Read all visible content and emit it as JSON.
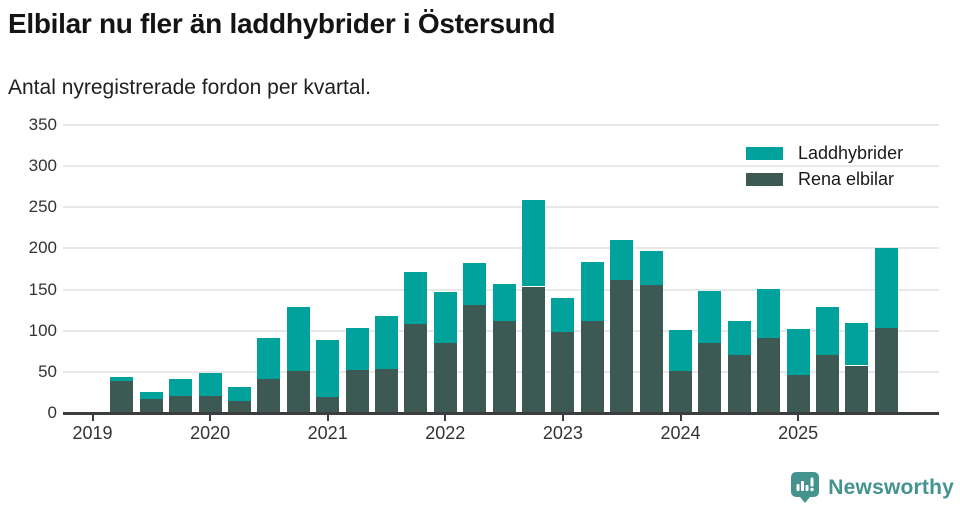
{
  "header": {
    "title": "Elbilar nu fler än laddhybrider i Östersund",
    "subtitle": "Antal nyregistrerade fordon per kvartal."
  },
  "colors": {
    "laddhybrider": "#00A29B",
    "rena_elbilar": "#3C5954",
    "gridline": "#E8E8E8",
    "axis": "#3D3D3D",
    "brand": "#44938E"
  },
  "legend": {
    "items": [
      {
        "label": "Laddhybrider",
        "color_key": "laddhybrider"
      },
      {
        "label": "Rena elbilar",
        "color_key": "rena_elbilar"
      }
    ]
  },
  "chart_data": {
    "type": "bar",
    "stacked": true,
    "title": "Elbilar nu fler än laddhybrider i Östersund",
    "subtitle": "Antal nyregistrerade fordon per kvartal.",
    "xlabel": "",
    "ylabel": "",
    "ylim": [
      0,
      350
    ],
    "yticks": [
      0,
      50,
      100,
      150,
      200,
      250,
      300,
      350
    ],
    "grid": true,
    "legend_position": "top-right",
    "x": [
      "2019 Q2",
      "2019 Q3",
      "2019 Q4",
      "2020 Q1",
      "2020 Q2",
      "2020 Q3",
      "2020 Q4",
      "2021 Q1",
      "2021 Q2",
      "2021 Q3",
      "2021 Q4",
      "2022 Q1",
      "2022 Q2",
      "2022 Q3",
      "2022 Q4",
      "2023 Q1",
      "2023 Q2",
      "2023 Q3",
      "2023 Q4",
      "2024 Q1",
      "2024 Q2",
      "2024 Q3",
      "2024 Q4",
      "2025 Q1",
      "2025 Q2",
      "2025 Q3",
      "2025 Q4"
    ],
    "year_ticks": [
      "2019",
      "2020",
      "2021",
      "2022",
      "2023",
      "2024",
      "2025"
    ],
    "series": [
      {
        "name": "Rena elbilar",
        "color_key": "rena_elbilar",
        "values": [
          40,
          18,
          22,
          22,
          16,
          42,
          52,
          21,
          54,
          55,
          109,
          86,
          132,
          113,
          155,
          100,
          113,
          163,
          157,
          52,
          86,
          72,
          92,
          47,
          72,
          59,
          104
        ]
      },
      {
        "name": "Laddhybrider",
        "color_key": "laddhybrider",
        "values": [
          5,
          9,
          21,
          28,
          17,
          50,
          78,
          69,
          51,
          64,
          64,
          62,
          51,
          45,
          105,
          41,
          72,
          48,
          41,
          50,
          63,
          41,
          60,
          56,
          58,
          52,
          98
        ]
      }
    ]
  },
  "footer": {
    "brand": "Newsworthy"
  }
}
